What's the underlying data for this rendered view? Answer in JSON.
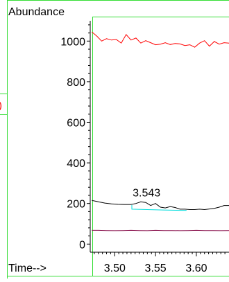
{
  "left_edge_fragment": ")",
  "colors": {
    "frame": "#33dd33",
    "fragment": "#ff0000",
    "axis": "#000000"
  },
  "chart_data": {
    "type": "line",
    "ylabel": "Abundance",
    "xlabel": "Time-->",
    "xlim": [
      3.47,
      3.64
    ],
    "ylim": [
      -40,
      1100
    ],
    "x_ticks": [
      "3.50",
      "3.55",
      "3.60"
    ],
    "x_tick_values": [
      3.5,
      3.55,
      3.6
    ],
    "y_ticks": [
      "0",
      "200",
      "400",
      "600",
      "800",
      "1000"
    ],
    "y_tick_values": [
      0,
      200,
      400,
      600,
      800,
      1000
    ],
    "annotations": [
      {
        "text": "3.543",
        "x": 3.539,
        "y": 235
      }
    ],
    "series": [
      {
        "color": "#ff0000",
        "x": [
          3.472,
          3.478,
          3.484,
          3.49,
          3.496,
          3.502,
          3.508,
          3.514,
          3.52,
          3.526,
          3.532,
          3.538,
          3.544,
          3.55,
          3.556,
          3.562,
          3.568,
          3.574,
          3.58,
          3.586,
          3.592,
          3.598,
          3.604,
          3.61,
          3.616,
          3.622,
          3.628,
          3.634,
          3.64
        ],
        "values": [
          1045,
          1025,
          1000,
          1012,
          1005,
          1008,
          990,
          1032,
          1005,
          1015,
          990,
          1002,
          992,
          982,
          985,
          992,
          983,
          988,
          986,
          978,
          982,
          970,
          990,
          1002,
          975,
          998,
          985,
          992,
          990
        ]
      },
      {
        "color": "#000000",
        "x": [
          3.472,
          3.48,
          3.488,
          3.496,
          3.504,
          3.512,
          3.52,
          3.526,
          3.532,
          3.538,
          3.544,
          3.55,
          3.556,
          3.562,
          3.568,
          3.574,
          3.58,
          3.586,
          3.592,
          3.598,
          3.604,
          3.61,
          3.616,
          3.622,
          3.628,
          3.634,
          3.64
        ],
        "values": [
          215,
          208,
          202,
          198,
          196,
          195,
          195,
          200,
          208,
          205,
          190,
          200,
          182,
          178,
          185,
          180,
          172,
          172,
          170,
          170,
          172,
          170,
          173,
          176,
          182,
          190,
          190
        ]
      },
      {
        "color": "#00dddd",
        "x": [
          3.521,
          3.521,
          3.54,
          3.56,
          3.58,
          3.588
        ],
        "values": [
          192,
          172,
          170,
          168,
          166,
          166
        ]
      },
      {
        "color": "#800040",
        "x": [
          3.472,
          3.48,
          3.49,
          3.5,
          3.51,
          3.52,
          3.53,
          3.54,
          3.55,
          3.56,
          3.57,
          3.58,
          3.59,
          3.6,
          3.61,
          3.62,
          3.63,
          3.64
        ],
        "values": [
          68,
          68,
          67,
          66,
          67,
          68,
          67,
          66,
          68,
          67,
          67,
          66,
          67,
          68,
          67,
          67,
          66,
          67
        ]
      }
    ]
  }
}
